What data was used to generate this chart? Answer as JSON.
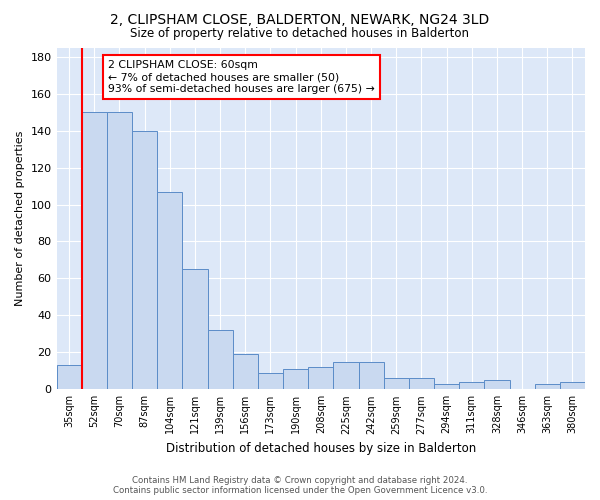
{
  "title": "2, CLIPSHAM CLOSE, BALDERTON, NEWARK, NG24 3LD",
  "subtitle": "Size of property relative to detached houses in Balderton",
  "xlabel": "Distribution of detached houses by size in Balderton",
  "ylabel": "Number of detached properties",
  "categories": [
    "35sqm",
    "52sqm",
    "70sqm",
    "87sqm",
    "104sqm",
    "121sqm",
    "139sqm",
    "156sqm",
    "173sqm",
    "190sqm",
    "208sqm",
    "225sqm",
    "242sqm",
    "259sqm",
    "277sqm",
    "294sqm",
    "311sqm",
    "328sqm",
    "346sqm",
    "363sqm",
    "380sqm"
  ],
  "values": [
    13,
    150,
    150,
    140,
    107,
    65,
    32,
    19,
    9,
    11,
    12,
    15,
    15,
    6,
    6,
    3,
    4,
    5,
    0,
    3,
    4
  ],
  "bar_color": "#c9d9f0",
  "bar_edge_color": "#5b8cc8",
  "highlight_bar_index": 1,
  "red_line_x": 1,
  "annotation_text": "2 CLIPSHAM CLOSE: 60sqm\n← 7% of detached houses are smaller (50)\n93% of semi-detached houses are larger (675) →",
  "ylim": [
    0,
    185
  ],
  "yticks": [
    0,
    20,
    40,
    60,
    80,
    100,
    120,
    140,
    160,
    180
  ],
  "footer": "Contains HM Land Registry data © Crown copyright and database right 2024.\nContains public sector information licensed under the Open Government Licence v3.0.",
  "bg_color": "#ffffff",
  "plot_bg_color": "#dde8f8"
}
